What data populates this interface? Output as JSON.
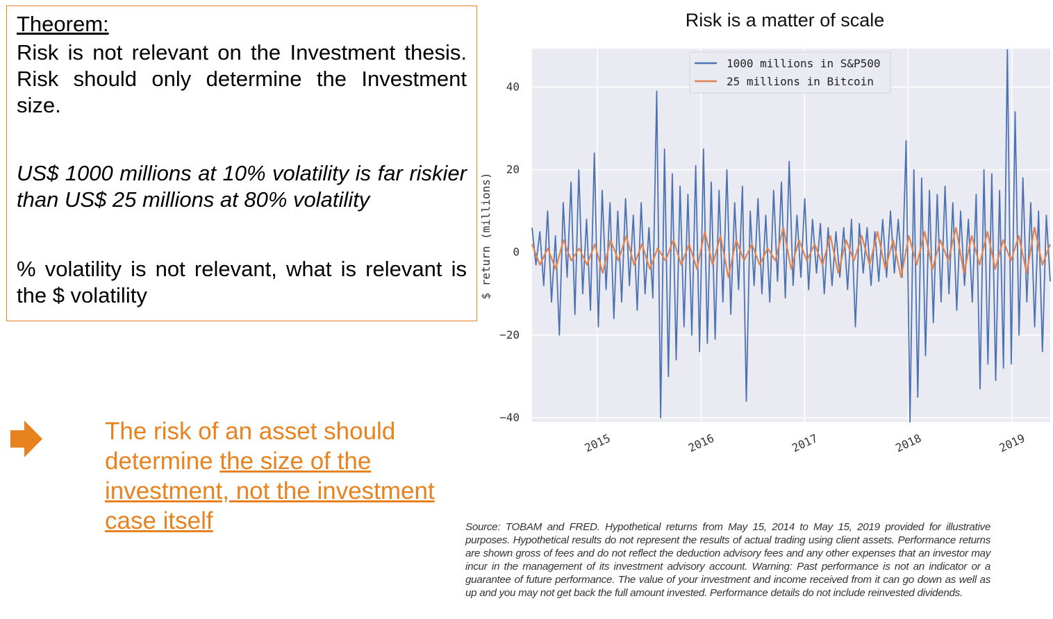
{
  "theorem_box": {
    "heading": "Theorem:",
    "paragraph1": "Risk is not relevant on the Investment thesis. Risk should only determine the Investment size.",
    "paragraph2": "US$ 1000 millions at 10% volatility is far riskier than US$ 25 millions at 80% volatility",
    "paragraph3": "% volatility is not relevant, what is relevant is the $ volatility"
  },
  "callout": {
    "icon": "arrow-right-icon",
    "text_plain": "The risk of an asset should determine ",
    "text_underlined": "the size of the investment, not the investment case itself",
    "color": "#e8821e"
  },
  "source_note": "Source: TOBAM and FRED. Hypothetical returns from May 15, 2014 to May 15, 2019 provided for illustrative purposes. Hypothetical results do not represent the results of actual trading using client assets. Performance returns are shown gross of fees and do not reflect the deduction advisory fees and any other expenses that an investor may incur in the management of its investment advisory account. Warning: Past performance is not an indicator or a guarantee of future performance. The value of your investment and income received from it can go down as well as up and you may not get back the full amount invested. Performance details do not include reinvested dividends.",
  "chart_data": {
    "type": "line",
    "title": "Risk is a matter of scale",
    "xlabel": "",
    "ylabel": "$ return (millions)",
    "xlim": [
      2014.37,
      2019.37
    ],
    "ylim": [
      -41,
      49.3
    ],
    "xticks": [
      2015,
      2016,
      2017,
      2018,
      2019
    ],
    "xtick_labels": [
      "2015",
      "2016",
      "2017",
      "2018",
      "2019"
    ],
    "yticks": [
      -40,
      -20,
      0,
      20,
      40
    ],
    "ytick_labels": [
      "−40",
      "−20",
      "0",
      "20",
      "40"
    ],
    "grid": true,
    "legend_position": "top-center",
    "series": [
      {
        "name": "1000 millions in S&P500",
        "color": "#4c72b0",
        "x_start": 2014.37,
        "x_end": 2019.37,
        "values": [
          6,
          -3,
          5,
          -8,
          10,
          -12,
          4,
          -20,
          12,
          -6,
          17,
          -15,
          20,
          -10,
          8,
          -14,
          24,
          -18,
          15,
          -9,
          12,
          -16,
          10,
          -12,
          13,
          -8,
          9,
          -14,
          12,
          -10,
          6,
          -11,
          39,
          -40,
          25,
          -30,
          19,
          -26,
          16,
          -18,
          14,
          -20,
          21,
          -24,
          25,
          -22,
          17,
          -21,
          15,
          -12,
          20,
          -15,
          12,
          -9,
          16,
          -36,
          10,
          -8,
          13,
          -10,
          9,
          -12,
          15,
          -7,
          17,
          -11,
          22,
          -8,
          9,
          -6,
          13,
          -9,
          8,
          -5,
          7,
          -10,
          6,
          -8,
          5,
          -6,
          6,
          -9,
          8,
          -18,
          7,
          -5,
          6,
          -8,
          5,
          -7,
          8,
          -6,
          10,
          -5,
          8,
          -6,
          27,
          -41,
          20,
          -35,
          18,
          -25,
          15,
          -17,
          14,
          -12,
          16,
          -10,
          12,
          -14,
          10,
          -8,
          8,
          -12,
          14,
          -33,
          20,
          -27,
          19,
          -31,
          15,
          -28,
          49,
          -27,
          34,
          -20,
          18,
          -12,
          12,
          -18,
          10,
          -24,
          9,
          -7
        ]
      },
      {
        "name": "25 millions in Bitcoin",
        "color": "#dd8452",
        "x_start": 2014.37,
        "x_end": 2019.37,
        "values": [
          2,
          -3,
          1,
          -4,
          3,
          -2,
          1,
          -3,
          2,
          -5,
          3,
          -2,
          4,
          -3,
          2,
          -4,
          1,
          -2,
          3,
          -3,
          2,
          -4,
          5,
          -3,
          4,
          -6,
          3,
          -2,
          2,
          -3,
          1,
          -2,
          6,
          -4,
          3,
          -2,
          2,
          -3,
          4,
          -5,
          3,
          -2,
          4,
          -3,
          5,
          -4,
          3,
          -6,
          4,
          -3,
          5,
          -4,
          3,
          -2,
          6,
          -5,
          4,
          -3,
          5,
          -4,
          3,
          -2,
          4,
          -5,
          6,
          -3,
          2
        ]
      }
    ]
  }
}
